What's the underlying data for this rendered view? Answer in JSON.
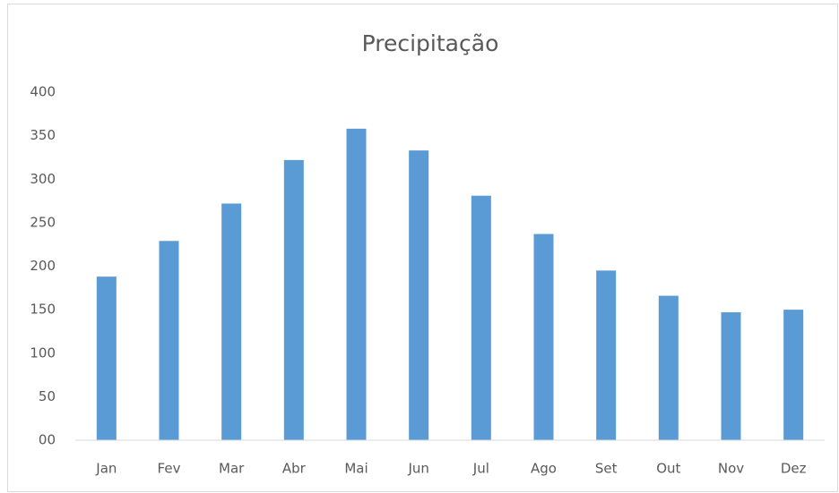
{
  "chart_data": {
    "type": "bar",
    "title": "Precipitação",
    "categories": [
      "Jan",
      "Fev",
      "Mar",
      "Abr",
      "Mai",
      "Jun",
      "Jul",
      "Ago",
      "Set",
      "Out",
      "Nov",
      "Dez"
    ],
    "values": [
      188,
      229,
      272,
      322,
      358,
      333,
      281,
      237,
      195,
      166,
      147,
      150
    ],
    "color": "#5b9bd5",
    "ylim": [
      0,
      400
    ],
    "yticks": [
      {
        "value": 0,
        "label": "00"
      },
      50,
      100,
      150,
      200,
      250,
      300,
      350,
      400
    ],
    "grid": false
  }
}
